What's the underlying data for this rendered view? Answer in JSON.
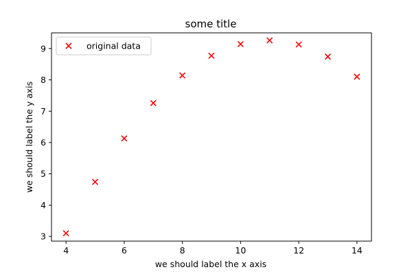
{
  "chart_data": {
    "type": "scatter",
    "title": "some title",
    "xlabel": "we should label the x axis",
    "ylabel": "we should label the y axis",
    "xlim": [
      3.5,
      14.5
    ],
    "ylim": [
      2.85,
      9.5
    ],
    "xticks": [
      4,
      6,
      8,
      10,
      12,
      14
    ],
    "yticks": [
      3,
      4,
      5,
      6,
      7,
      8,
      9
    ],
    "grid": false,
    "legend_position": "upper-left",
    "series": [
      {
        "name": "original data",
        "marker": "x",
        "color": "#ff0000",
        "x": [
          4,
          5,
          6,
          7,
          8,
          9,
          10,
          11,
          12,
          13,
          14
        ],
        "y": [
          3.1,
          4.74,
          6.13,
          7.26,
          8.14,
          8.77,
          9.14,
          9.26,
          9.13,
          8.74,
          8.1
        ]
      }
    ]
  }
}
